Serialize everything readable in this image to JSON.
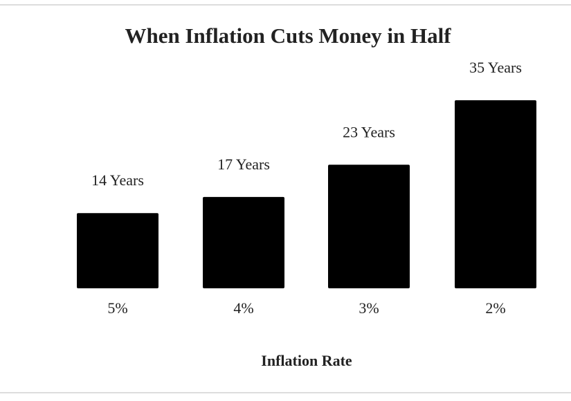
{
  "chart_data": {
    "type": "bar",
    "title": "When Inflation Cuts Money in Half",
    "x_label": "Inflation Rate",
    "categories": [
      "5%",
      "4%",
      "3%",
      "2%"
    ],
    "values": [
      14,
      17,
      23,
      35
    ],
    "value_labels": [
      "14 Years",
      "17 Years",
      "23 Years",
      "35 Years"
    ],
    "color": "#000000"
  }
}
